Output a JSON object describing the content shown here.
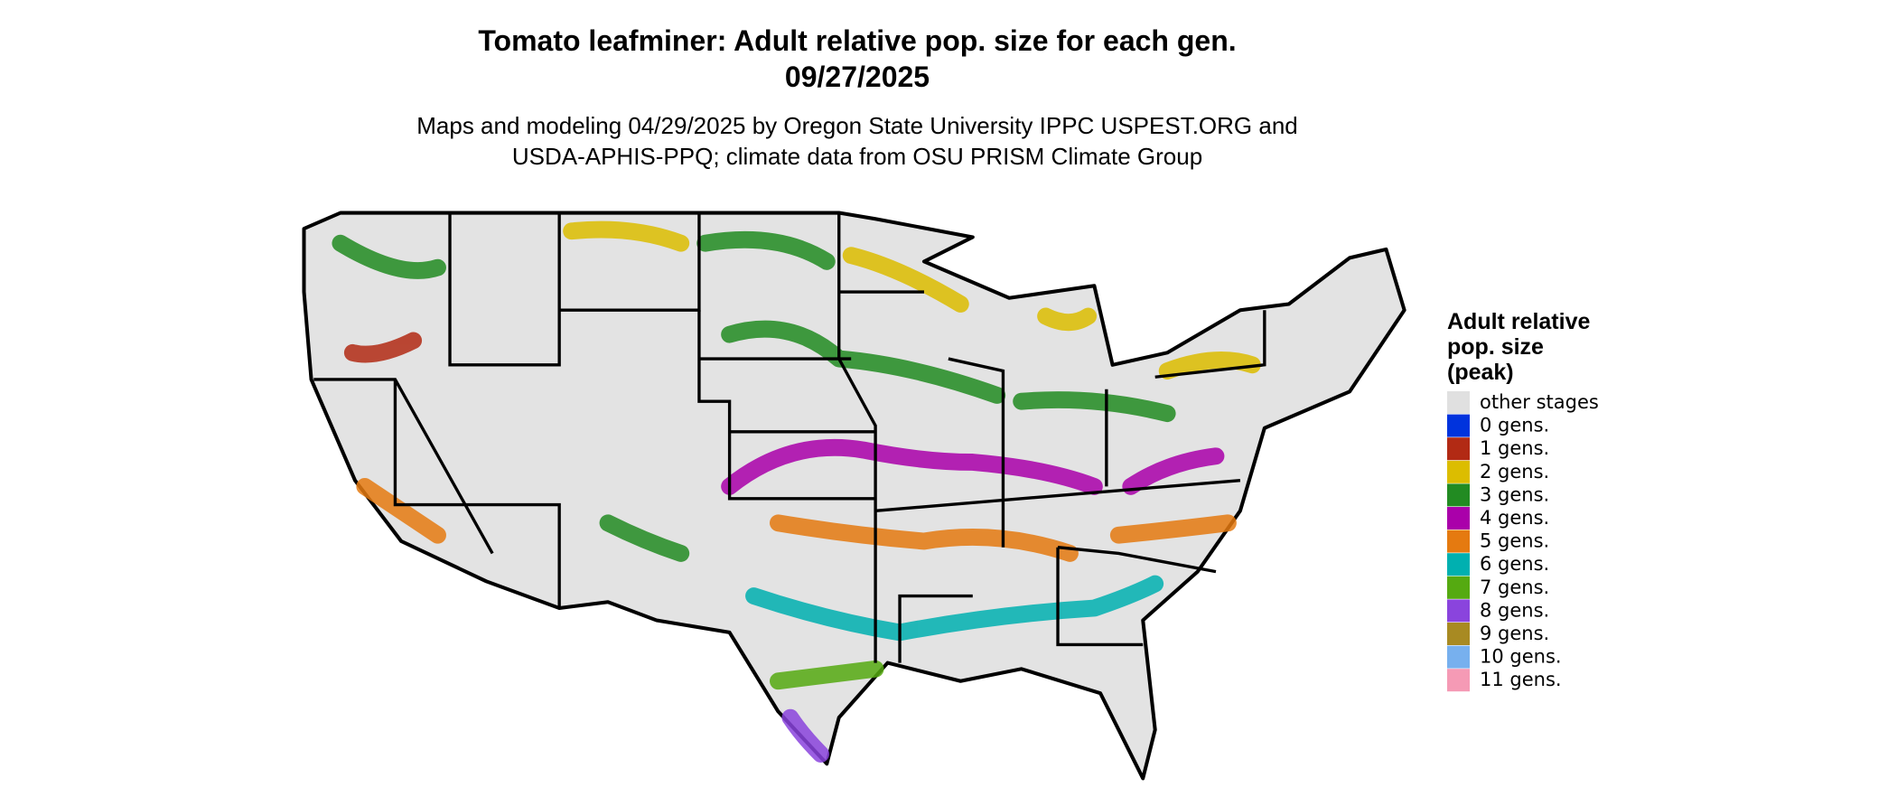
{
  "header": {
    "title": [
      "Tomato leafminer: Adult relative pop. size for each gen.",
      "09/27/2025"
    ],
    "subtitle": [
      "Maps and modeling 04/29/2025 by Oregon State University IPPC USPEST.ORG and",
      "USDA-APHIS-PPQ; climate data from OSU PRISM Climate Group"
    ]
  },
  "legend": {
    "title": [
      "Adult relative",
      "pop. size",
      "(peak)"
    ],
    "items": [
      {
        "label": "other stages",
        "color": "#e0e0e0"
      },
      {
        "label": "0 gens.",
        "color": "#0033dd"
      },
      {
        "label": "1 gens.",
        "color": "#b22a14"
      },
      {
        "label": "2 gens.",
        "color": "#dcbd00"
      },
      {
        "label": "3 gens.",
        "color": "#228b22"
      },
      {
        "label": "4 gens.",
        "color": "#aa00aa"
      },
      {
        "label": "5 gens.",
        "color": "#e57a10"
      },
      {
        "label": "6 gens.",
        "color": "#00b0b0"
      },
      {
        "label": "7 gens.",
        "color": "#55aa11"
      },
      {
        "label": "8 gens.",
        "color": "#8a44dd"
      },
      {
        "label": "9 gens.",
        "color": "#a88a22"
      },
      {
        "label": "10 gens.",
        "color": "#77b0ee"
      },
      {
        "label": "11 gens.",
        "color": "#f59ab5"
      }
    ]
  }
}
